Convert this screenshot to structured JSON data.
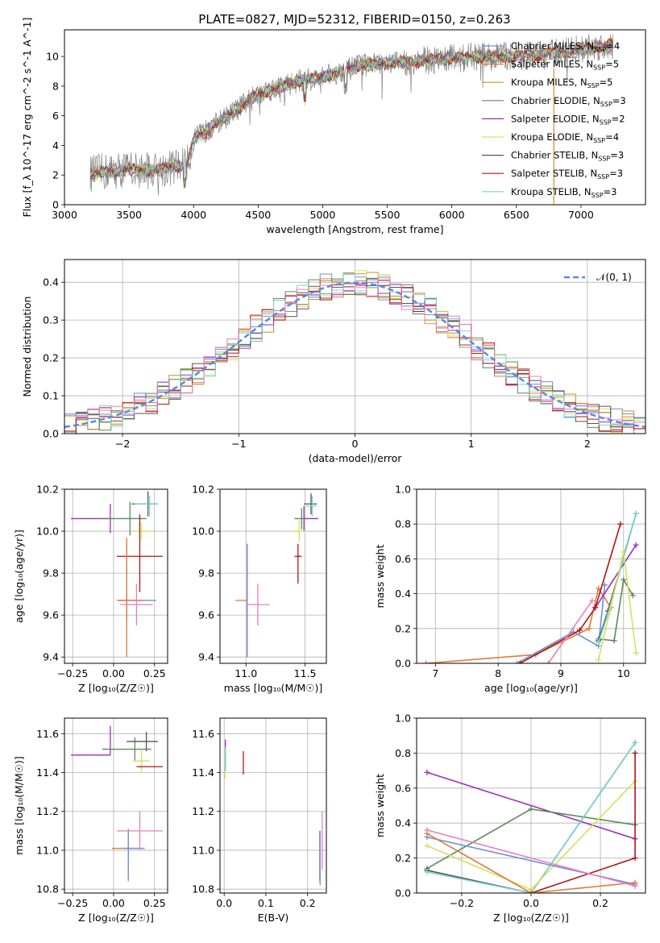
{
  "colors": {
    "chab_miles": "#6f8fd6",
    "salp_miles": "#e07b39",
    "krou_miles": "#d98d2a",
    "chab_elodie": "#5a8a5a",
    "salp_elodie": "#9b2fb3",
    "krou_elodie": "#d4e25a",
    "chab_stelib": "#555555",
    "salp_stelib": "#b01515",
    "krou_stelib": "#76d6d6",
    "gauss": "#5b8bdc",
    "pink": "#e67ec4"
  },
  "chart_data": [
    {
      "id": "spectrum",
      "type": "line",
      "title": "PLATE=0827, MJD=52312, FIBERID=0150, z=0.263",
      "xlabel": "wavelength [Angstrom, rest frame]",
      "ylabel": "Flux [f_λ 10^-17 erg cm^-2 s^-1 A^-1]",
      "xlim": [
        3000,
        7500
      ],
      "ylim": [
        0,
        11.8
      ],
      "xticks": [
        "3000",
        "3500",
        "4000",
        "4500",
        "5000",
        "5500",
        "6000",
        "6500",
        "7000"
      ],
      "yticks": [
        "0",
        "2",
        "4",
        "6",
        "8",
        "10"
      ],
      "legend_position": "right",
      "series": [
        {
          "name": "Chabrier MILES, N_SSP=4",
          "key": "chab_miles"
        },
        {
          "name": "Salpeter MILES, N_SSP=5",
          "key": "salp_miles"
        },
        {
          "name": "Kroupa MILES, N_SSP=5",
          "key": "krou_miles"
        },
        {
          "name": "Chabrier ELODIE, N_SSP=3",
          "key": "chab_elodie"
        },
        {
          "name": "Salpeter ELODIE, N_SSP=2",
          "key": "salp_elodie"
        },
        {
          "name": "Kroupa ELODIE, N_SSP=4",
          "key": "krou_elodie"
        },
        {
          "name": "Chabrier STELIB, N_SSP=3",
          "key": "chab_stelib"
        },
        {
          "name": "Salpeter STELIB, N_SSP=3",
          "key": "salp_stelib"
        },
        {
          "name": "Kroupa STELIB, N_SSP=3",
          "key": "krou_stelib"
        }
      ],
      "continuum_x": [
        3200,
        3500,
        3700,
        3950,
        4000,
        4300,
        4500,
        4800,
        5000,
        5300,
        5600,
        6000,
        6300,
        6700,
        7000,
        7250
      ],
      "continuum_y": [
        2.1,
        2.4,
        2.3,
        2.7,
        4.4,
        6.2,
        7.5,
        8.3,
        8.6,
        9.4,
        9.6,
        9.9,
        10.0,
        10.1,
        10.5,
        10.8
      ],
      "data_xrange": [
        3200,
        7250
      ]
    },
    {
      "id": "residuals",
      "type": "bar",
      "xlabel": "(data-model)/error",
      "ylabel": "Normed distribution",
      "xlim": [
        -2.5,
        2.5
      ],
      "ylim": [
        0,
        0.46
      ],
      "xticks": [
        "−2",
        "−1",
        "0",
        "1",
        "2"
      ],
      "yticks": [
        "0.0",
        "0.1",
        "0.2",
        "0.3",
        "0.4"
      ],
      "grid": true,
      "legend_position": "top-right",
      "gauss_label": "𝒩(0, 1)",
      "bin_width": 0.1,
      "bin_start": -2.5
    },
    {
      "id": "age_vs_Z",
      "type": "scatter",
      "xlabel": "Z [log₁₀(Z/Z☉)]",
      "ylabel": "age  [log₁₀(age/yr)]",
      "xlim": [
        -0.3,
        0.33
      ],
      "ylim": [
        9.37,
        10.2
      ],
      "xticks": [
        "−0.25",
        "0.00",
        "0.25"
      ],
      "yticks": [
        "9.4",
        "9.6",
        "9.8",
        "10.0",
        "10.2"
      ],
      "grid": true,
      "points": [
        {
          "key": "salp_elodie",
          "x": -0.02,
          "y": 10.06,
          "xe": [
            0.24,
            0
          ],
          "ye": [
            0.07,
            0.07
          ]
        },
        {
          "key": "chab_elodie",
          "x": 0.1,
          "y": 10.06,
          "xe": [
            0.17,
            0.1
          ],
          "ye": [
            0.08,
            0.08
          ]
        },
        {
          "key": "chab_stelib",
          "x": 0.21,
          "y": 10.13,
          "xe": [
            0.1,
            0.06
          ],
          "ye": [
            0.06,
            0.06
          ]
        },
        {
          "key": "krou_stelib",
          "x": 0.22,
          "y": 10.13,
          "xe": [
            0.09,
            0.05
          ],
          "ye": [
            0.06,
            0.04
          ]
        },
        {
          "key": "krou_elodie",
          "x": 0.17,
          "y": 10.0,
          "xe": [
            0.05,
            0.06
          ],
          "ye": [
            0.04,
            0.04
          ]
        },
        {
          "key": "salp_stelib",
          "x": 0.16,
          "y": 9.88,
          "xe": [
            0.14,
            0.14
          ],
          "ye": [
            0.17,
            0.2
          ]
        },
        {
          "key": "chab_miles",
          "x": 0.08,
          "y": 9.67,
          "xe": [
            0.05,
            0.18
          ],
          "ye": [
            0.1,
            0.28
          ]
        },
        {
          "key": "salp_miles",
          "x": 0.08,
          "y": 9.67,
          "xe": [
            0.06,
            0.1
          ],
          "ye": [
            0.27,
            0.3
          ]
        },
        {
          "key": "pink",
          "x": 0.14,
          "y": 9.65,
          "xe": [
            0.1,
            0.1
          ],
          "ye": [
            0.1,
            0.1
          ]
        }
      ]
    },
    {
      "id": "age_vs_mass",
      "type": "scatter",
      "xlabel": "mass [log₁₀(M/M☉)]",
      "xlim": [
        10.78,
        11.68
      ],
      "ylim": [
        9.37,
        10.2
      ],
      "xticks": [
        "11.0",
        "11.5"
      ],
      "yticks": [
        "9.4",
        "9.6",
        "9.8",
        "10.0",
        "10.2"
      ],
      "grid": true,
      "points": [
        {
          "key": "salp_elodie",
          "x": 11.49,
          "y": 10.06,
          "xe": [
            0.0,
            0.12
          ],
          "ye": [
            0.06,
            0.06
          ]
        },
        {
          "key": "chab_stelib",
          "x": 11.55,
          "y": 10.13,
          "xe": [
            0.06,
            0.05
          ],
          "ye": [
            0.05,
            0.05
          ]
        },
        {
          "key": "krou_stelib",
          "x": 11.56,
          "y": 10.12,
          "xe": [
            0.05,
            0.04
          ],
          "ye": [
            0.05,
            0.05
          ]
        },
        {
          "key": "chab_elodie",
          "x": 11.47,
          "y": 10.06,
          "xe": [
            0.06,
            0.06
          ],
          "ye": [
            0.05,
            0.05
          ]
        },
        {
          "key": "krou_elodie",
          "x": 11.45,
          "y": 10.0,
          "xe": [
            0.06,
            0.05
          ],
          "ye": [
            0.05,
            0.05
          ]
        },
        {
          "key": "salp_stelib",
          "x": 11.44,
          "y": 9.88,
          "xe": [
            0.03,
            0.03
          ],
          "ye": [
            0.13,
            0.06
          ]
        },
        {
          "key": "salp_miles",
          "x": 11.01,
          "y": 9.67,
          "xe": [
            0.1,
            0.0
          ],
          "ye": [
            0.27,
            0.27
          ]
        },
        {
          "key": "chab_miles",
          "x": 11.01,
          "y": 9.67,
          "xe": [
            0.0,
            0.0
          ],
          "ye": [
            0.27,
            0.27
          ]
        },
        {
          "key": "pink",
          "x": 11.1,
          "y": 9.65,
          "xe": [
            0.1,
            0.1
          ],
          "ye": [
            0.1,
            0.1
          ]
        }
      ]
    },
    {
      "id": "weight_vs_age",
      "type": "line",
      "xlabel": "age  [log₁₀(age/yr)]",
      "ylabel": "mass weight",
      "xlim": [
        6.7,
        10.35
      ],
      "ylim": [
        0,
        1
      ],
      "xticks": [
        "7",
        "8",
        "9",
        "10"
      ],
      "yticks": [
        "0.0",
        "0.2",
        "0.4",
        "0.6",
        "0.8",
        "1.0"
      ],
      "grid": true,
      "series": [
        {
          "key": "salp_miles",
          "x": [
            6.85,
            8.6,
            9.45,
            9.6,
            9.8
          ],
          "y": [
            0.0,
            0.05,
            0.2,
            0.43,
            0.32
          ]
        },
        {
          "key": "chab_miles",
          "x": [
            8.3,
            9.2,
            9.6,
            9.7
          ],
          "y": [
            0.0,
            0.18,
            0.1,
            0.45
          ]
        },
        {
          "key": "salp_elodie",
          "x": [
            9.55,
            10.2
          ],
          "y": [
            0.32,
            0.68
          ]
        },
        {
          "key": "chab_elodie",
          "x": [
            9.6,
            9.85,
            10.0,
            10.15
          ],
          "y": [
            0.14,
            0.13,
            0.48,
            0.39
          ]
        },
        {
          "key": "salp_stelib",
          "x": [
            8.35,
            9.3,
            9.55,
            9.95
          ],
          "y": [
            0.0,
            0.19,
            0.32,
            0.8
          ]
        },
        {
          "key": "chab_stelib",
          "x": [
            9.6,
            9.75,
            10.2
          ],
          "y": [
            0.13,
            0.3,
            0.86
          ]
        },
        {
          "key": "krou_stelib",
          "x": [
            9.6,
            9.75,
            10.2
          ],
          "y": [
            0.12,
            0.28,
            0.86
          ]
        },
        {
          "key": "krou_elodie",
          "x": [
            9.6,
            10.0,
            10.2
          ],
          "y": [
            0.02,
            0.64,
            0.06
          ]
        },
        {
          "key": "pink",
          "x": [
            8.8,
            9.5
          ],
          "y": [
            0.0,
            0.36
          ]
        }
      ]
    },
    {
      "id": "mass_vs_Z",
      "type": "scatter",
      "xlabel": "Z [log₁₀(Z/Z☉)]",
      "ylabel": "mass [log₁₀(M/M☉)]",
      "xlim": [
        -0.3,
        0.33
      ],
      "ylim": [
        10.78,
        11.68
      ],
      "xticks": [
        "−0.25",
        "0.00",
        "0.25"
      ],
      "yticks": [
        "10.8",
        "11.0",
        "11.2",
        "11.4",
        "11.6"
      ],
      "grid": true,
      "points": [
        {
          "key": "salp_elodie",
          "x": -0.02,
          "y": 11.49,
          "xe": [
            0.24,
            0
          ],
          "ye": [
            0.0,
            0.15
          ]
        },
        {
          "key": "chab_elodie",
          "x": 0.13,
          "y": 11.52,
          "xe": [
            0.2,
            0.1
          ],
          "ye": [
            0.06,
            0.06
          ]
        },
        {
          "key": "chab_stelib",
          "x": 0.2,
          "y": 11.56,
          "xe": [
            0.12,
            0.07
          ],
          "ye": [
            0.05,
            0.05
          ]
        },
        {
          "key": "krou_elodie",
          "x": 0.17,
          "y": 11.46,
          "xe": [
            0.05,
            0.05
          ],
          "ye": [
            0.06,
            0.06
          ]
        },
        {
          "key": "salp_stelib",
          "x": 0.22,
          "y": 11.43,
          "xe": [
            0.08,
            0.08
          ],
          "ye": [
            0.0,
            0.0
          ]
        },
        {
          "key": "salp_miles",
          "x": 0.09,
          "y": 11.01,
          "xe": [
            0.1,
            0.06
          ],
          "ye": [
            0.17,
            0.1
          ]
        },
        {
          "key": "chab_miles",
          "x": 0.09,
          "y": 11.01,
          "xe": [
            0.03,
            0.1
          ],
          "ye": [
            0.15,
            0.1
          ]
        },
        {
          "key": "pink",
          "x": 0.16,
          "y": 11.1,
          "xe": [
            0.14,
            0.14
          ],
          "ye": [
            0.1,
            0.1
          ]
        }
      ]
    },
    {
      "id": "mass_vs_EBV",
      "type": "scatter",
      "xlabel": "E(B-V)",
      "xlim": [
        -0.01,
        0.245
      ],
      "ylim": [
        10.78,
        11.68
      ],
      "xticks": [
        "0.0",
        "0.1",
        "0.2"
      ],
      "yticks": [
        "10.8",
        "11.0",
        "11.2",
        "11.4",
        "11.6"
      ],
      "grid": true,
      "points": [
        {
          "key": "salp_elodie",
          "x": 0.003,
          "y": 11.49,
          "xe": [
            0,
            0
          ],
          "ye": [
            0.08,
            0.08
          ]
        },
        {
          "key": "krou_elodie",
          "x": 0.002,
          "y": 11.45,
          "xe": [
            0,
            0
          ],
          "ye": [
            0.08,
            0.08
          ]
        },
        {
          "key": "krou_stelib",
          "x": 0.003,
          "y": 11.47,
          "xe": [
            0,
            0
          ],
          "ye": [
            0.06,
            0.06
          ]
        },
        {
          "key": "salp_stelib",
          "x": 0.046,
          "y": 11.45,
          "xe": [
            0,
            0
          ],
          "ye": [
            0.06,
            0.06
          ]
        },
        {
          "key": "salp_miles",
          "x": 0.229,
          "y": 10.98,
          "xe": [
            0,
            0
          ],
          "ye": [
            0.14,
            0.12
          ]
        },
        {
          "key": "chab_miles",
          "x": 0.23,
          "y": 10.98,
          "xe": [
            0,
            0
          ],
          "ye": [
            0.16,
            0.12
          ]
        },
        {
          "key": "pink",
          "x": 0.235,
          "y": 11.05,
          "xe": [
            0,
            0
          ],
          "ye": [
            0.15,
            0.15
          ]
        }
      ]
    },
    {
      "id": "weight_vs_Z",
      "type": "line",
      "xlabel": "Z [log₁₀(Z/Z☉)]",
      "ylabel": "mass weight",
      "xlim": [
        -0.33,
        0.33
      ],
      "ylim": [
        0,
        1
      ],
      "xticks": [
        "−0.2",
        "0.0",
        "0.2"
      ],
      "yticks": [
        "0.0",
        "0.2",
        "0.4",
        "0.6",
        "0.8",
        "1.0"
      ],
      "grid": true,
      "series": [
        {
          "key": "salp_elodie",
          "x": [
            -0.3,
            0.3
          ],
          "y": [
            0.69,
            0.31
          ]
        },
        {
          "key": "chab_elodie",
          "x": [
            -0.3,
            0.0,
            0.3
          ],
          "y": [
            0.14,
            0.48,
            0.39
          ]
        },
        {
          "key": "chab_stelib",
          "x": [
            -0.3,
            0.0,
            0.3
          ],
          "y": [
            0.13,
            0.0,
            0.86
          ]
        },
        {
          "key": "krou_stelib",
          "x": [
            -0.3,
            0.0,
            0.3
          ],
          "y": [
            0.12,
            0.0,
            0.86
          ]
        },
        {
          "key": "krou_elodie",
          "x": [
            -0.3,
            0.0,
            0.3
          ],
          "y": [
            0.27,
            0.02,
            0.64
          ]
        },
        {
          "key": "salp_stelib",
          "x": [
            0.0,
            0.3,
            0.3
          ],
          "y": [
            0.0,
            0.2,
            0.8
          ]
        },
        {
          "key": "chab_miles",
          "x": [
            -0.3,
            0.3
          ],
          "y": [
            0.32,
            0.05
          ]
        },
        {
          "key": "salp_miles",
          "x": [
            -0.3,
            0.0,
            0.3
          ],
          "y": [
            0.34,
            0.0,
            0.06
          ]
        },
        {
          "key": "pink",
          "x": [
            -0.3,
            0.3
          ],
          "y": [
            0.36,
            0.04
          ]
        }
      ]
    }
  ]
}
